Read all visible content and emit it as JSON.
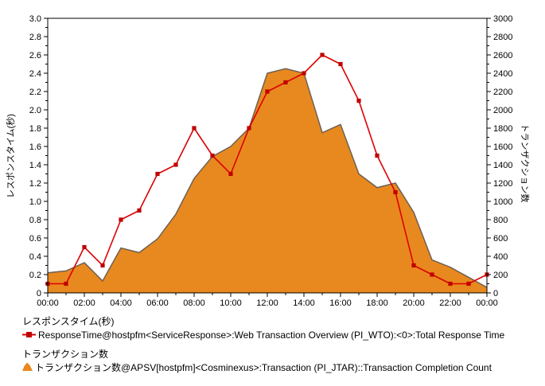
{
  "chart": {
    "left_axis": {
      "label": "レスポンスタイム(秒)",
      "min": 0,
      "max": 3.0,
      "major_step": 0.2,
      "minor_step": 0.1,
      "tick_labels": [
        "0",
        "0.2",
        "0.4",
        "0.6",
        "0.8",
        "1.0",
        "1.2",
        "1.4",
        "1.6",
        "1.8",
        "2.0",
        "2.2",
        "2.4",
        "2.6",
        "2.8",
        "3.0"
      ]
    },
    "right_axis": {
      "label": "トランザクション数",
      "min": 0,
      "max": 3000,
      "major_step": 200,
      "minor_step": 100,
      "tick_labels": [
        "0",
        "200",
        "400",
        "600",
        "800",
        "1000",
        "1200",
        "1400",
        "1600",
        "1800",
        "2000",
        "2200",
        "2400",
        "2600",
        "2800",
        "3000"
      ]
    },
    "x_axis": {
      "min_hour": 0,
      "max_hour": 24,
      "major_step_hours": 2,
      "minor_step_hours": 1,
      "tick_labels": [
        "00:00",
        "02:00",
        "04:00",
        "06:00",
        "08:00",
        "10:00",
        "12:00",
        "14:00",
        "16:00",
        "18:00",
        "20:00",
        "22:00",
        "00:00"
      ]
    }
  },
  "chart_data": {
    "type": "combo",
    "x_hours": [
      0,
      1,
      2,
      3,
      4,
      5,
      6,
      7,
      8,
      9,
      10,
      11,
      12,
      13,
      14,
      15,
      16,
      17,
      18,
      19,
      20,
      21,
      22,
      23,
      24
    ],
    "series": [
      {
        "name": "ResponseTime@hostpfm<ServiceResponse>:Web Transaction Overview (PI_WTO):<0>:Total Response Time",
        "type": "line",
        "axis": "left",
        "marker": "square",
        "line_color": "#dd0000",
        "marker_color": "#c00000",
        "values": [
          0.1,
          0.1,
          0.5,
          0.3,
          0.8,
          0.9,
          1.3,
          1.4,
          1.8,
          1.5,
          1.3,
          1.8,
          2.2,
          2.3,
          2.4,
          2.6,
          2.5,
          2.1,
          1.5,
          1.1,
          0.3,
          0.2,
          0.1,
          0.1,
          0.2
        ]
      },
      {
        "name": "トランザクション数@APSV[hostpfm]<Cosminexus>:Transaction (PI_JTAR)::Transaction Completion Count",
        "type": "area",
        "axis": "right",
        "fill_color": "#e8891f",
        "edge_color": "#6e6052",
        "values": [
          220,
          240,
          330,
          130,
          490,
          440,
          590,
          860,
          1250,
          1490,
          1600,
          1800,
          2400,
          2450,
          2400,
          1750,
          1840,
          1300,
          1150,
          1200,
          880,
          360,
          280,
          170,
          60
        ]
      }
    ],
    "title": "",
    "grid": false,
    "legend_position": "bottom-left",
    "ylim_left": [
      0,
      3.0
    ],
    "ylim_right": [
      0,
      3000
    ]
  },
  "legend": {
    "groups": [
      {
        "title": "レスポンスタイム(秒)",
        "item": "ResponseTime@hostpfm<ServiceResponse>:Web Transaction Overview (PI_WTO):<0>:Total Response Time",
        "icon_color": "#dd0000"
      },
      {
        "title": "トランザクション数",
        "item": "トランザクション数@APSV[hostpfm]<Cosminexus>:Transaction (PI_JTAR)::Transaction Completion Count",
        "icon_color": "#e8891f"
      }
    ]
  },
  "colors": {
    "response_line": "#dd0000",
    "response_marker": "#c00000",
    "transactions_fill": "#e8891f",
    "transactions_edge": "#6e6052",
    "axis": "#000000"
  }
}
